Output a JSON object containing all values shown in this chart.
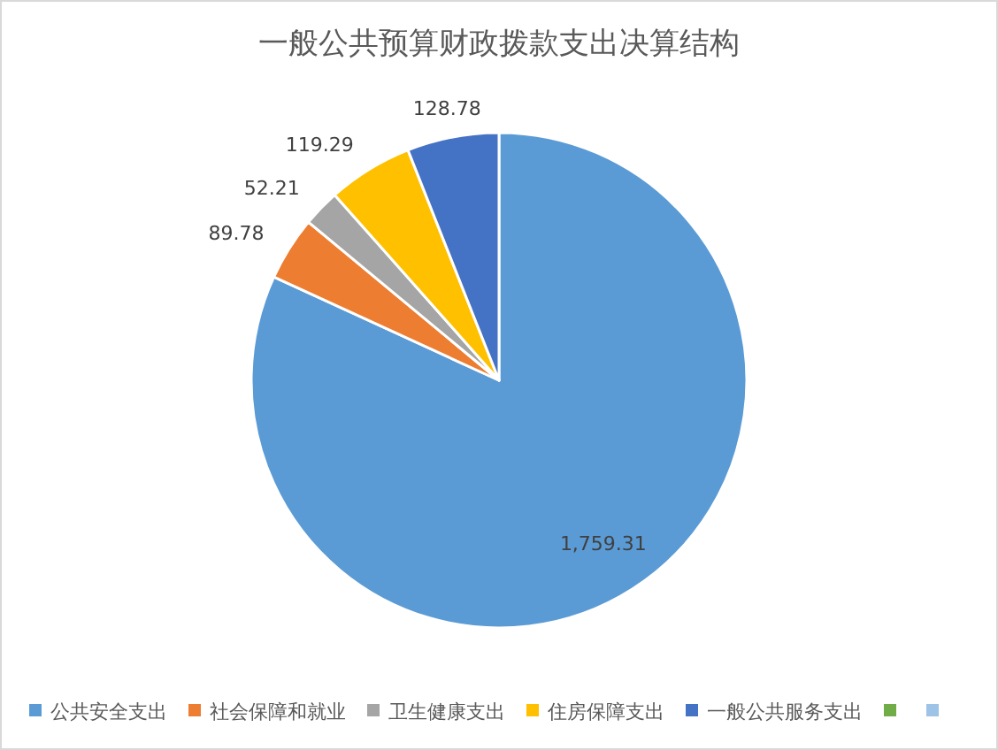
{
  "chart_data": {
    "type": "pie",
    "title": "一般公共预算财政拨款支出决算结构",
    "categories": [
      "公共安全支出",
      "社会保障和就业",
      "卫生健康支出",
      "住房保障支出",
      "一般公共服务支出",
      null,
      null
    ],
    "values": [
      1759.31,
      89.78,
      52.21,
      119.29,
      128.78,
      null,
      null
    ],
    "colors": [
      "#5b9bd5",
      "#ed7d31",
      "#a5a5a5",
      "#ffc000",
      "#4472c4",
      "#70ad47",
      "#9dc3e6"
    ],
    "value_labels": [
      "1,759.31",
      "89.78",
      "52.21",
      "119.29",
      "128.78",
      null,
      null
    ],
    "legend": "bottom"
  }
}
